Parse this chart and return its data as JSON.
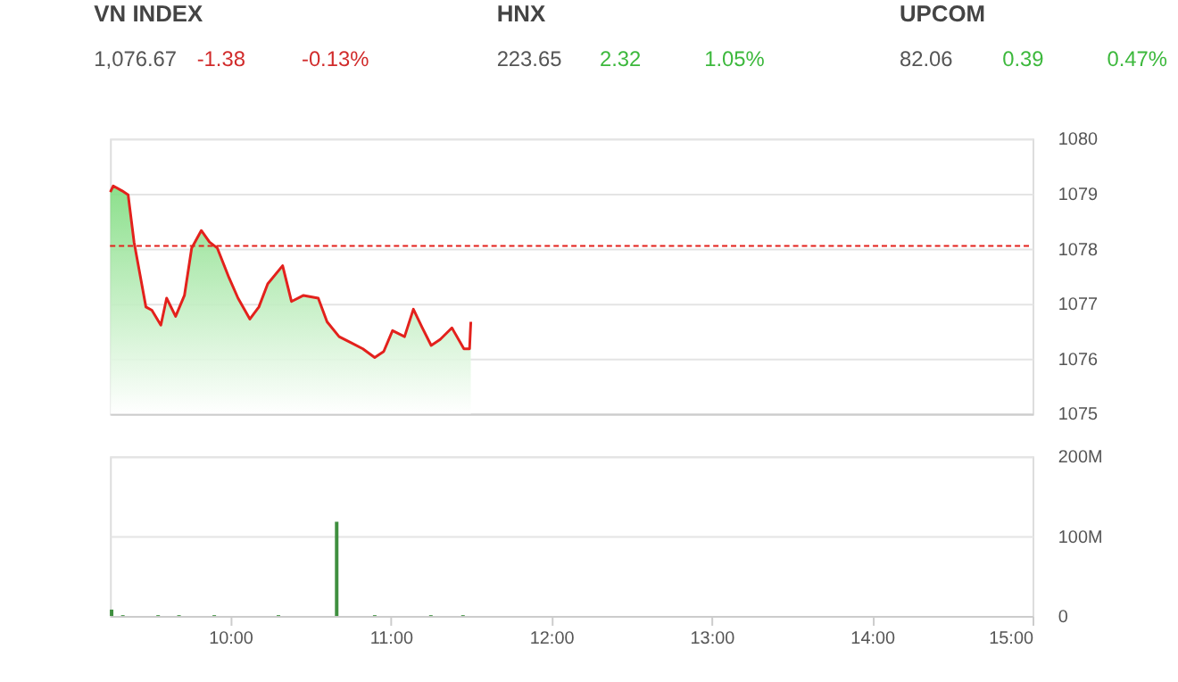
{
  "chart_data": [
    {
      "type": "area",
      "annotations": [
        "VN INDEX",
        "1,076.67",
        "-1.38",
        "-0.13%",
        "HNX",
        "223.65",
        "2.32",
        "1.05%",
        "UPCOM",
        "82.06",
        "0.39",
        "0.47%"
      ],
      "x": [
        9.252,
        9.27,
        9.326,
        9.363,
        9.4,
        9.437,
        9.474,
        9.511,
        9.567,
        9.603,
        9.659,
        9.714,
        9.759,
        9.819,
        9.87,
        9.919,
        9.992,
        10.048,
        10.122,
        10.178,
        10.233,
        10.326,
        10.381,
        10.456,
        10.548,
        10.603,
        10.678,
        10.752,
        10.826,
        10.9,
        10.956,
        11.011,
        11.086,
        11.141,
        11.197,
        11.252,
        11.308,
        11.381,
        11.456,
        11.491,
        11.499
      ],
      "series": [
        {
          "color": "#e3211c",
          "values": [
            1079.03,
            1079.14,
            1079.05,
            1078.98,
            1078.12,
            1077.53,
            1076.94,
            1076.88,
            1076.61,
            1077.1,
            1076.77,
            1077.15,
            1078.01,
            1078.33,
            1078.12,
            1078.01,
            1077.47,
            1077.1,
            1076.72,
            1076.94,
            1077.36,
            1077.69,
            1077.04,
            1077.15,
            1077.1,
            1076.67,
            1076.4,
            1076.29,
            1076.18,
            1076.02,
            1076.13,
            1076.51,
            1076.4,
            1076.9,
            1076.56,
            1076.24,
            1076.35,
            1076.56,
            1076.18,
            1076.18,
            1076.67
          ]
        }
      ],
      "xlim": [
        9.25,
        15.0
      ],
      "ylim": [
        1075,
        1080
      ],
      "yticks": [
        1075,
        1076,
        1077,
        1078,
        1079,
        1080
      ],
      "ref_lines": [
        {
          "axis": "y",
          "value": 1078.05,
          "color": "#e3211c",
          "line_style": "dashed"
        }
      ],
      "grid": "y",
      "tick_labels": "y"
    },
    {
      "type": "bar",
      "x": [
        9.26,
        9.33,
        9.55,
        9.68,
        9.9,
        10.3,
        10.663,
        10.9,
        11.25,
        11.45
      ],
      "series": [
        {
          "color": "#3f8f3f",
          "values": [
            8,
            1,
            1,
            1,
            1,
            1,
            118,
            1,
            1,
            1
          ]
        }
      ],
      "xlim": [
        9.25,
        15.0
      ],
      "xticks": [
        {
          "value": 10,
          "label": "10:00"
        },
        {
          "value": 11,
          "label": "11:00"
        },
        {
          "value": 12,
          "label": "12:00"
        },
        {
          "value": 13,
          "label": "13:00"
        },
        {
          "value": 14,
          "label": "14:00"
        },
        {
          "value": 15,
          "label": "15:00"
        }
      ],
      "ylim": [
        0,
        200
      ],
      "yticks": [
        {
          "value": 0,
          "label": "0"
        },
        {
          "value": 100,
          "label": "100M"
        },
        {
          "value": 200,
          "label": "200M"
        }
      ],
      "grid": "y"
    }
  ]
}
